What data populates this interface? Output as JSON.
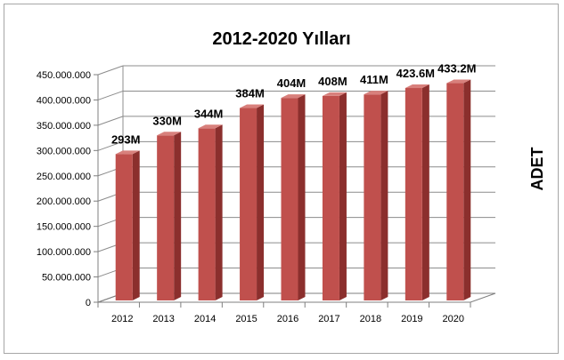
{
  "chart_data": {
    "type": "bar",
    "title": "2012-2020 Yılları",
    "ylabel": "ADET",
    "xlabel": "",
    "categories": [
      "2012",
      "2013",
      "2014",
      "2015",
      "2016",
      "2017",
      "2018",
      "2019",
      "2020"
    ],
    "values": [
      293000000,
      330000000,
      344000000,
      384000000,
      404000000,
      408000000,
      411000000,
      423600000,
      433200000
    ],
    "data_labels": [
      "293M",
      "330M",
      "344M",
      "384M",
      "404M",
      "408M",
      "411M",
      "423.6M",
      "433.2M"
    ],
    "yticks": [
      "0",
      "50.000.000",
      "100.000.000",
      "150.000.000",
      "200.000.000",
      "250.000.000",
      "300.000.000",
      "350.000.000",
      "400.000.000",
      "450.000.000"
    ],
    "ylim": [
      0,
      450000000
    ],
    "grid": true,
    "legend": "none",
    "bar_color": "#c0504d",
    "bar_shade_color": "#8b2f2d",
    "bar_top_color": "#d8807c",
    "gridline_color": "#8c8c8c"
  }
}
